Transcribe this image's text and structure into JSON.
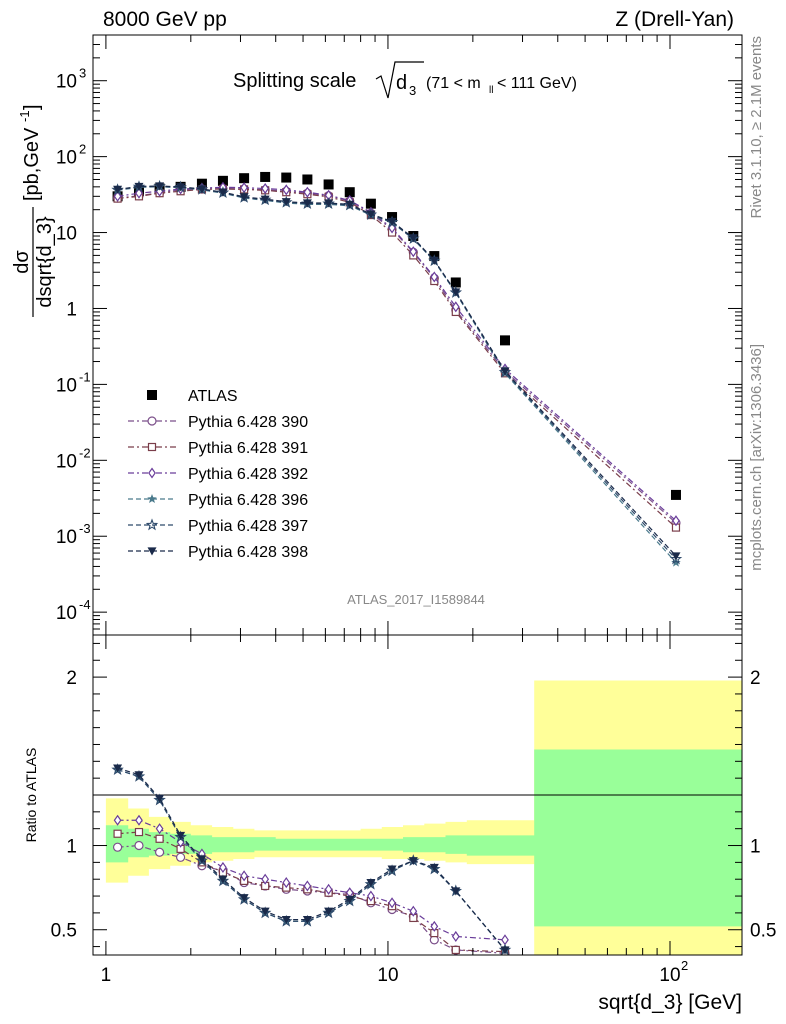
{
  "header": {
    "left": "8000 GeV pp",
    "right": "Z (Drell-Yan)"
  },
  "chart_data": [
    {
      "type": "scatter",
      "title_prefix": "Splitting scale",
      "title_sqrt_var": "d",
      "title_sqrt_sub": "3",
      "title_range_pre": "(71 < m",
      "title_range_sub": "ll",
      "title_range_post": " < 111 GeV)",
      "ylabel_num": "dσ",
      "ylabel_den": "dsqrt{d_3}",
      "ylabel_unit": "[pb,GeV",
      "ylabel_unit_sup": "-1",
      "ylabel_unit_close": "]",
      "xscale": "log",
      "yscale": "log",
      "xlim": [
        0.9,
        180
      ],
      "ylim": [
        5e-05,
        4000
      ],
      "yticks": [
        {
          "v": 0.0001,
          "base": "10",
          "exp": "-4"
        },
        {
          "v": 0.001,
          "base": "10",
          "exp": "-3"
        },
        {
          "v": 0.01,
          "base": "10",
          "exp": "-2"
        },
        {
          "v": 0.1,
          "base": "10",
          "exp": "-1"
        },
        {
          "v": 1,
          "base": "1",
          "exp": ""
        },
        {
          "v": 10,
          "base": "10",
          "exp": ""
        },
        {
          "v": 100,
          "base": "10",
          "exp": "2"
        },
        {
          "v": 1000,
          "base": "10",
          "exp": "3"
        }
      ],
      "watermark": "ATLAS_2017_I1589844",
      "legend_position": "lower-left",
      "x": [
        1.1,
        1.31,
        1.55,
        1.84,
        2.19,
        2.6,
        3.09,
        3.67,
        4.36,
        5.18,
        6.16,
        7.32,
        8.7,
        10.34,
        12.3,
        14.6,
        17.4,
        26.0,
        105.0
      ],
      "series": [
        {
          "name": "ATLAS",
          "marker": "filled-square",
          "color": "#000000",
          "line": "none",
          "values": [
            30,
            35,
            38,
            40,
            44,
            48,
            52,
            54,
            53,
            50,
            43,
            34,
            24,
            16,
            9.0,
            4.9,
            2.2,
            0.38,
            0.0035
          ]
        },
        {
          "name": "Pythia 6.428 390",
          "marker": "open-circle",
          "color": "#7b4f8a",
          "line": "dashdot",
          "values": [
            28.5,
            30.5,
            33.5,
            36.5,
            37.5,
            38.0,
            37.5,
            36.5,
            35.0,
            33.0,
            30.5,
            26.0,
            18.0,
            11.0,
            5.5,
            2.5,
            0.95,
            0.15,
            0.0015
          ]
        },
        {
          "name": "Pythia 6.428 391",
          "marker": "open-square",
          "color": "#7a3e4a",
          "line": "dashdot",
          "values": [
            28.0,
            30.0,
            33.0,
            35.0,
            37.0,
            37.5,
            37.0,
            36.0,
            34.0,
            32.0,
            29.5,
            25.0,
            17.0,
            10.0,
            5.0,
            2.3,
            0.9,
            0.14,
            0.0013
          ]
        },
        {
          "name": "Pythia 6.428 392",
          "marker": "open-diamond",
          "color": "#6a3d9a",
          "line": "dashdot",
          "values": [
            30.0,
            33.0,
            35.0,
            37.5,
            38.5,
            39.5,
            39.0,
            38.0,
            36.5,
            34.0,
            31.0,
            26.5,
            18.5,
            11.5,
            5.6,
            2.6,
            1.05,
            0.16,
            0.0016
          ]
        },
        {
          "name": "Pythia 6.428 396",
          "marker": "filled-star",
          "color": "#4a7a8c",
          "line": "dashed",
          "values": [
            36.0,
            39.5,
            40.0,
            39.0,
            36.5,
            33.0,
            28.5,
            26.5,
            24.5,
            23.5,
            23.5,
            22.5,
            17.0,
            13.5,
            8.2,
            4.2,
            1.6,
            0.14,
            0.00045
          ]
        },
        {
          "name": "Pythia 6.428 397",
          "marker": "open-star",
          "color": "#2e4a6b",
          "line": "dashed",
          "values": [
            36.5,
            40.0,
            40.5,
            39.5,
            37.0,
            33.5,
            29.0,
            27.0,
            25.0,
            24.0,
            24.0,
            23.0,
            17.2,
            13.7,
            8.3,
            4.25,
            1.62,
            0.145,
            0.0005
          ]
        },
        {
          "name": "Pythia 6.428 398",
          "marker": "filled-triangle-down",
          "color": "#1a2a4a",
          "line": "dashed",
          "values": [
            37.0,
            40.5,
            41.0,
            40.0,
            37.5,
            34.0,
            29.5,
            27.5,
            25.5,
            24.5,
            24.5,
            23.5,
            17.5,
            14.0,
            8.5,
            4.3,
            1.65,
            0.15,
            0.00055
          ]
        }
      ]
    },
    {
      "type": "line",
      "xlabel": "sqrt{d_3} [GeV]",
      "ylabel": "Ratio to ATLAS",
      "xscale": "log",
      "xlim": [
        0.9,
        180
      ],
      "ylim": [
        0.35,
        2.25
      ],
      "yticks": [
        0.5,
        1,
        2
      ],
      "xticks": [
        {
          "v": 1,
          "label": "1",
          "exp": ""
        },
        {
          "v": 10,
          "label": "10",
          "exp": ""
        },
        {
          "v": 100,
          "label": "10",
          "exp": "2"
        }
      ],
      "x": [
        1.1,
        1.31,
        1.55,
        1.84,
        2.19,
        2.6,
        3.09,
        3.67,
        4.36,
        5.18,
        6.16,
        7.32,
        8.7,
        10.34,
        12.3,
        14.6,
        17.4,
        26.0
      ],
      "bin_edges": [
        1.0,
        1.2,
        1.42,
        1.69,
        2.0,
        2.38,
        2.83,
        3.36,
        4.0,
        4.76,
        5.66,
        6.73,
        8.0,
        9.51,
        11.31,
        13.45,
        16.0,
        19.03,
        33.0,
        180.0
      ],
      "band_inner": [
        [
          0.9,
          1.12
        ],
        [
          0.93,
          1.1
        ],
        [
          0.94,
          1.08
        ],
        [
          0.95,
          1.07
        ],
        [
          0.95,
          1.06
        ],
        [
          0.96,
          1.05
        ],
        [
          0.96,
          1.05
        ],
        [
          0.97,
          1.05
        ],
        [
          0.97,
          1.04
        ],
        [
          0.97,
          1.04
        ],
        [
          0.97,
          1.04
        ],
        [
          0.97,
          1.04
        ],
        [
          0.97,
          1.04
        ],
        [
          0.97,
          1.04
        ],
        [
          0.96,
          1.05
        ],
        [
          0.96,
          1.05
        ],
        [
          0.95,
          1.06
        ],
        [
          0.94,
          1.06
        ],
        [
          0.52,
          1.57
        ]
      ],
      "band_outer": [
        [
          0.78,
          1.28
        ],
        [
          0.82,
          1.22
        ],
        [
          0.86,
          1.17
        ],
        [
          0.88,
          1.14
        ],
        [
          0.9,
          1.12
        ],
        [
          0.91,
          1.11
        ],
        [
          0.92,
          1.1
        ],
        [
          0.93,
          1.09
        ],
        [
          0.93,
          1.09
        ],
        [
          0.93,
          1.09
        ],
        [
          0.93,
          1.09
        ],
        [
          0.93,
          1.09
        ],
        [
          0.93,
          1.1
        ],
        [
          0.92,
          1.11
        ],
        [
          0.92,
          1.12
        ],
        [
          0.91,
          1.13
        ],
        [
          0.9,
          1.14
        ],
        [
          0.89,
          1.15
        ],
        [
          0.3,
          1.98
        ]
      ],
      "band_inner_color": "#99ff99",
      "band_outer_color": "#ffff99",
      "series": [
        {
          "name": "Pythia 6.428 390",
          "marker": "open-circle",
          "color": "#7b4f8a",
          "line": "dashdot",
          "values": [
            0.99,
            1.0,
            0.96,
            0.93,
            0.88,
            0.85,
            0.78,
            0.76,
            0.74,
            0.73,
            0.72,
            0.71,
            0.66,
            0.62,
            0.58,
            0.44,
            0.38,
            0.36
          ]
        },
        {
          "name": "Pythia 6.428 391",
          "marker": "open-square",
          "color": "#7a3e4a",
          "line": "dashdot",
          "values": [
            1.07,
            1.08,
            1.04,
            0.98,
            0.9,
            0.84,
            0.79,
            0.76,
            0.75,
            0.74,
            0.72,
            0.7,
            0.67,
            0.64,
            0.57,
            0.48,
            0.38,
            0.37
          ]
        },
        {
          "name": "Pythia 6.428 392",
          "marker": "open-diamond",
          "color": "#6a3d9a",
          "line": "dashdot",
          "values": [
            1.15,
            1.15,
            1.1,
            1.02,
            0.95,
            0.87,
            0.82,
            0.8,
            0.78,
            0.76,
            0.74,
            0.72,
            0.7,
            0.66,
            0.61,
            0.52,
            0.46,
            0.44
          ]
        },
        {
          "name": "Pythia 6.428 396",
          "marker": "filled-star",
          "color": "#4a7a8c",
          "line": "dashed",
          "values": [
            1.45,
            1.41,
            1.27,
            1.05,
            0.91,
            0.79,
            0.68,
            0.6,
            0.55,
            0.55,
            0.6,
            0.67,
            0.77,
            0.85,
            0.91,
            0.86,
            0.73,
            0.38
          ]
        },
        {
          "name": "Pythia 6.428 397",
          "marker": "open-star",
          "color": "#2e4a6b",
          "line": "dashed",
          "values": [
            1.45,
            1.41,
            1.27,
            1.05,
            0.91,
            0.79,
            0.68,
            0.6,
            0.55,
            0.55,
            0.6,
            0.67,
            0.77,
            0.85,
            0.91,
            0.86,
            0.73,
            0.38
          ]
        },
        {
          "name": "Pythia 6.428 398",
          "marker": "filled-triangle-down",
          "color": "#1a2a4a",
          "line": "dashed",
          "values": [
            1.46,
            1.42,
            1.28,
            1.06,
            0.92,
            0.8,
            0.69,
            0.61,
            0.56,
            0.56,
            0.61,
            0.68,
            0.78,
            0.86,
            0.91,
            0.87,
            0.73,
            0.38
          ]
        }
      ]
    }
  ],
  "side_text": {
    "rivet": "Rivet 3.1.10, ≥ 2.1M events",
    "mcplots": "mcplots.cern.ch [arXiv:1306.3436]"
  }
}
